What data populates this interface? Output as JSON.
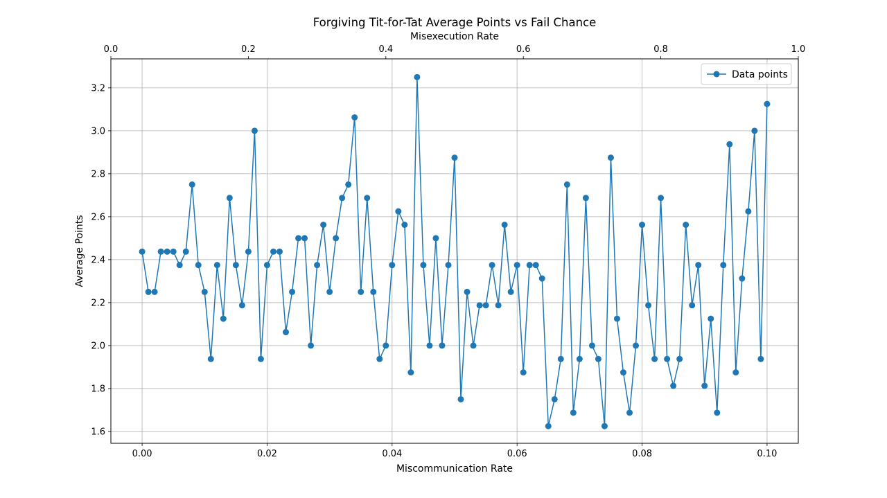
{
  "chart_data": {
    "type": "line",
    "title": "Forgiving Tit-for-Tat Average Points vs Fail Chance",
    "xlabel": "Miscommunication Rate",
    "ylabel": "Average Points",
    "top_xlabel": "Misexecution Rate",
    "xlim": [
      -0.005,
      0.105
    ],
    "ylim": [
      1.545,
      3.335
    ],
    "top_xlim": [
      0.0,
      1.0
    ],
    "x_ticks": [
      "0.00",
      "0.02",
      "0.04",
      "0.06",
      "0.08",
      "0.10"
    ],
    "y_ticks": [
      "1.6",
      "1.8",
      "2.0",
      "2.2",
      "2.4",
      "2.6",
      "2.8",
      "3.0",
      "3.2"
    ],
    "top_x_ticks": [
      "0.0",
      "0.2",
      "0.4",
      "0.6",
      "0.8",
      "1.0"
    ],
    "grid": true,
    "legend_placement": "top-right",
    "series_color": "#1f77b4",
    "series": [
      {
        "name": "Data points",
        "x": [
          0.0,
          0.001,
          0.002,
          0.003,
          0.004,
          0.005,
          0.006,
          0.007,
          0.008,
          0.009,
          0.01,
          0.011,
          0.012,
          0.013,
          0.014,
          0.015,
          0.016,
          0.017,
          0.018,
          0.019,
          0.02,
          0.021,
          0.022,
          0.023,
          0.024,
          0.025,
          0.026,
          0.027,
          0.028,
          0.029,
          0.03,
          0.031,
          0.032,
          0.033,
          0.034,
          0.035,
          0.036,
          0.037,
          0.038,
          0.039,
          0.04,
          0.041,
          0.042,
          0.043,
          0.044,
          0.045,
          0.046,
          0.047,
          0.048,
          0.049,
          0.05,
          0.051,
          0.052,
          0.053,
          0.054,
          0.055,
          0.056,
          0.057,
          0.058,
          0.059,
          0.06,
          0.061,
          0.062,
          0.063,
          0.064,
          0.065,
          0.066,
          0.067,
          0.068,
          0.069,
          0.07,
          0.071,
          0.072,
          0.073,
          0.074,
          0.075,
          0.076,
          0.077,
          0.078,
          0.079,
          0.08,
          0.081,
          0.082,
          0.083,
          0.084,
          0.085,
          0.086,
          0.087,
          0.088,
          0.089,
          0.09,
          0.091,
          0.092,
          0.093,
          0.094,
          0.095,
          0.096,
          0.097,
          0.098,
          0.099,
          0.1
        ],
        "y": [
          2.4375,
          2.25,
          2.25,
          2.4375,
          2.4375,
          2.4375,
          2.375,
          2.4375,
          2.75,
          2.375,
          2.25,
          1.9375,
          2.375,
          2.125,
          2.6875,
          2.375,
          2.1875,
          2.4375,
          3.0,
          1.9375,
          2.375,
          2.4375,
          2.4375,
          2.0625,
          2.25,
          2.5,
          2.5,
          2.0,
          2.375,
          2.5625,
          2.25,
          2.5,
          2.6875,
          2.75,
          3.0625,
          2.25,
          2.6875,
          2.25,
          1.9375,
          2.0,
          2.375,
          2.625,
          2.5625,
          1.875,
          3.25,
          2.375,
          2.0,
          2.5,
          2.0,
          2.375,
          2.875,
          1.75,
          2.25,
          2.0,
          2.1875,
          2.1875,
          2.375,
          2.1875,
          2.5625,
          2.25,
          2.375,
          1.875,
          2.375,
          2.375,
          2.3125,
          1.625,
          1.75,
          1.9375,
          2.75,
          1.6875,
          1.9375,
          2.6875,
          2.0,
          1.9375,
          1.625,
          2.875,
          2.125,
          1.875,
          1.6875,
          2.0,
          2.5625,
          2.1875,
          1.9375,
          2.6875,
          1.9375,
          1.8125,
          1.9375,
          2.5625,
          2.1875,
          2.375,
          1.8125,
          2.125,
          1.6875,
          2.375,
          2.9375,
          1.875,
          2.3125,
          2.625,
          3.0,
          1.9375,
          3.125
        ]
      }
    ]
  }
}
